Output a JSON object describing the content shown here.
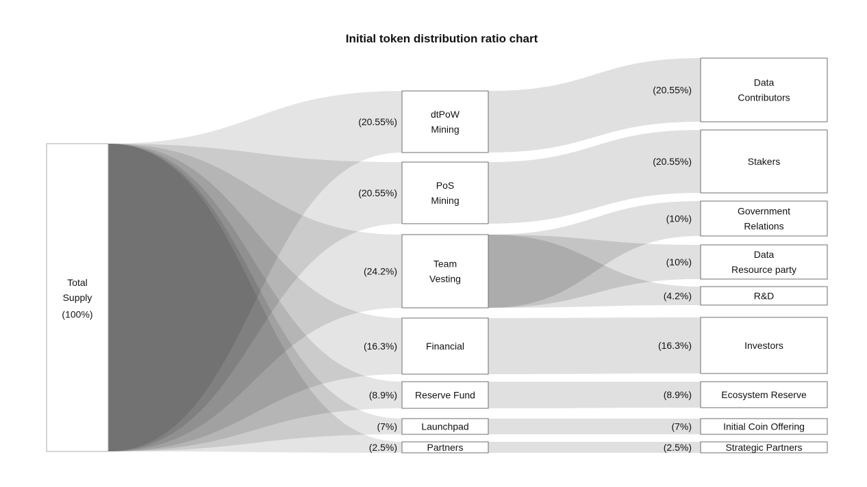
{
  "chart_data": {
    "type": "sankey",
    "title": "Initial token distribution ratio chart",
    "legend": "none",
    "background": "#ffffff",
    "columns": [
      "source",
      "allocation",
      "recipient"
    ],
    "nodes": [
      {
        "id": "total_supply",
        "column": 0,
        "lines": [
          "Total",
          "Supply",
          "(100%)"
        ],
        "percent_label": "(100%)",
        "value": 100,
        "percent_position": "inside"
      },
      {
        "id": "dtpow_mining",
        "column": 1,
        "lines": [
          "dtPoW",
          "Mining"
        ],
        "percent_label": "(20.55%)",
        "value": 20.55,
        "percent_position": "left"
      },
      {
        "id": "pos_mining",
        "column": 1,
        "lines": [
          "PoS",
          "Mining"
        ],
        "percent_label": "(20.55%)",
        "value": 20.55,
        "percent_position": "left"
      },
      {
        "id": "team_vesting",
        "column": 1,
        "lines": [
          "Team",
          "Vesting"
        ],
        "percent_label": "(24.2%)",
        "value": 24.2,
        "percent_position": "left"
      },
      {
        "id": "financial",
        "column": 1,
        "lines": [
          "Financial"
        ],
        "percent_label": "(16.3%)",
        "value": 16.3,
        "percent_position": "left"
      },
      {
        "id": "reserve_fund",
        "column": 1,
        "lines": [
          "Reserve Fund"
        ],
        "percent_label": "(8.9%)",
        "value": 8.9,
        "percent_position": "left"
      },
      {
        "id": "launchpad",
        "column": 1,
        "lines": [
          "Launchpad"
        ],
        "percent_label": "(7%)",
        "value": 7,
        "percent_position": "left"
      },
      {
        "id": "partners",
        "column": 1,
        "lines": [
          "Partners"
        ],
        "percent_label": "(2.5%)",
        "value": 2.5,
        "percent_position": "left"
      },
      {
        "id": "data_contributors",
        "column": 2,
        "lines": [
          "Data",
          "Contributors"
        ],
        "percent_label": "(20.55%)",
        "value": 20.55,
        "percent_position": "left"
      },
      {
        "id": "stakers",
        "column": 2,
        "lines": [
          "Stakers"
        ],
        "percent_label": "(20.55%)",
        "value": 20.55,
        "percent_position": "left"
      },
      {
        "id": "government_relations",
        "column": 2,
        "lines": [
          "Government",
          "Relations"
        ],
        "percent_label": "(10%)",
        "value": 10,
        "percent_position": "left"
      },
      {
        "id": "data_resource_party",
        "column": 2,
        "lines": [
          "Data",
          "Resource party"
        ],
        "percent_label": "(10%)",
        "value": 10,
        "percent_position": "left"
      },
      {
        "id": "rnd",
        "column": 2,
        "lines": [
          "R&D"
        ],
        "percent_label": "(4.2%)",
        "value": 4.2,
        "percent_position": "left"
      },
      {
        "id": "investors",
        "column": 2,
        "lines": [
          "Investors"
        ],
        "percent_label": "(16.3%)",
        "value": 16.3,
        "percent_position": "left"
      },
      {
        "id": "ecosystem_reserve",
        "column": 2,
        "lines": [
          "Ecosystem Reserve"
        ],
        "percent_label": "(8.9%)",
        "value": 8.9,
        "percent_position": "left"
      },
      {
        "id": "initial_coin_offering",
        "column": 2,
        "lines": [
          "Initial Coin Offering"
        ],
        "percent_label": "(7%)",
        "value": 7,
        "percent_position": "left"
      },
      {
        "id": "strategic_partners",
        "column": 2,
        "lines": [
          "Strategic Partners"
        ],
        "percent_label": "(2.5%)",
        "value": 2.5,
        "percent_position": "left"
      }
    ],
    "flows": [
      {
        "source": "total_supply",
        "target": "dtpow_mining",
        "value": 20.55
      },
      {
        "source": "total_supply",
        "target": "pos_mining",
        "value": 20.55
      },
      {
        "source": "total_supply",
        "target": "team_vesting",
        "value": 24.2
      },
      {
        "source": "total_supply",
        "target": "financial",
        "value": 16.3
      },
      {
        "source": "total_supply",
        "target": "reserve_fund",
        "value": 8.9
      },
      {
        "source": "total_supply",
        "target": "launchpad",
        "value": 7
      },
      {
        "source": "total_supply",
        "target": "partners",
        "value": 2.5
      },
      {
        "source": "dtpow_mining",
        "target": "data_contributors",
        "value": 20.55
      },
      {
        "source": "pos_mining",
        "target": "stakers",
        "value": 20.55
      },
      {
        "source": "team_vesting",
        "target": "government_relations",
        "value": 10
      },
      {
        "source": "team_vesting",
        "target": "data_resource_party",
        "value": 10
      },
      {
        "source": "team_vesting",
        "target": "rnd",
        "value": 4.2
      },
      {
        "source": "financial",
        "target": "investors",
        "value": 16.3
      },
      {
        "source": "reserve_fund",
        "target": "ecosystem_reserve",
        "value": 8.9
      },
      {
        "source": "launchpad",
        "target": "initial_coin_offering",
        "value": 7
      },
      {
        "source": "partners",
        "target": "strategic_partners",
        "value": 2.5
      }
    ],
    "colors": {
      "background": "#ffffff",
      "ribbon": "#000000",
      "node_fill": "#ffffff",
      "node_border": "#6e6e6e",
      "source_node_border": "#ababab",
      "text": "#111111"
    }
  }
}
